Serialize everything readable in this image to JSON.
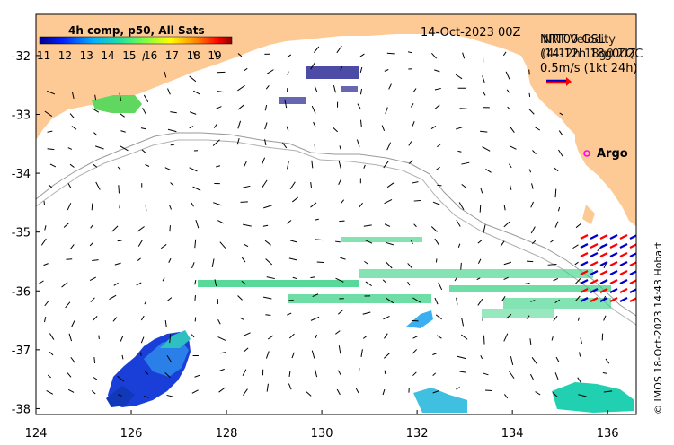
{
  "map": {
    "date_label": "14-Oct-2023 00Z",
    "credit": "© IMOS 18-Oct-2023 14:43 Hobart",
    "colorbar": {
      "title": "4h comp, p50, All Sats",
      "ticks": [
        "11",
        "12",
        "13",
        "14",
        "15",
        "16",
        "17",
        "18",
        "19"
      ]
    },
    "legend": {
      "overlapping_text_a": [
        "NRT00 GSL",
        "(14-12h 18g0UZ",
        "0.5m/s (1kt 24h)"
      ],
      "overlapping_text_b": [
        "NRT Velocity",
        "(4-12h 18g0 ZQC"
      ]
    },
    "argo_label": "Argo",
    "x_ticks": [
      "124",
      "126",
      "128",
      "130",
      "132",
      "134",
      "136"
    ],
    "y_ticks": [
      "-32",
      "-33",
      "-34",
      "-35",
      "-36",
      "-37",
      "-38"
    ],
    "extent": {
      "lon": [
        124,
        136.6
      ],
      "lat": [
        -38.1,
        -31.3
      ]
    },
    "colors": {
      "land": "#fdc994",
      "axis": "#000000",
      "bathymetry": "#9a9a9a",
      "argo": "#ff00ff",
      "vector_red": "#ff0000",
      "vector_blue": "#0000cc"
    }
  }
}
